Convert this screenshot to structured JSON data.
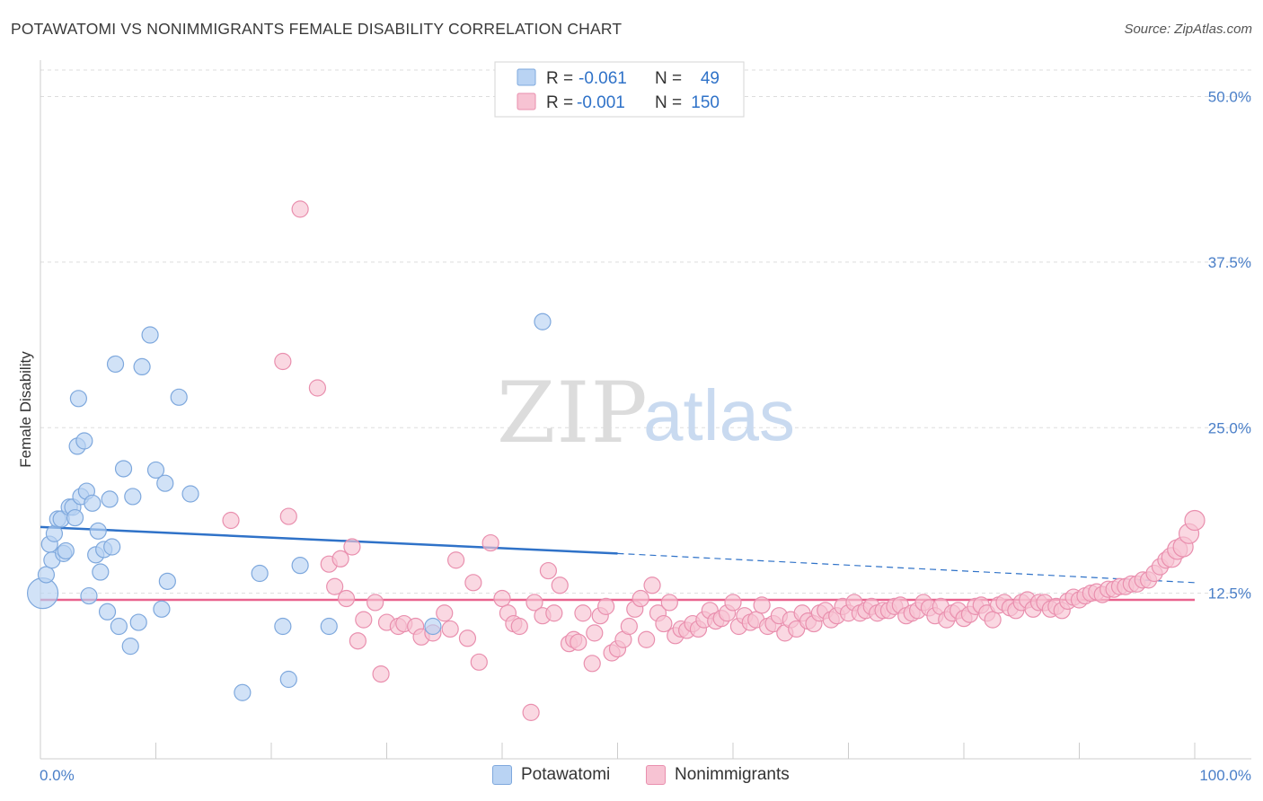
{
  "title": "POTAWATOMI VS NONIMMIGRANTS FEMALE DISABILITY CORRELATION CHART",
  "source": "Source: ZipAtlas.com",
  "watermark": {
    "zip": "ZIP",
    "atlas": "atlas"
  },
  "colors": {
    "blue_fill": "#b9d3f3",
    "blue_edge": "#7ea8dd",
    "blue_line": "#2f72c8",
    "pink_fill": "#f7c3d3",
    "pink_edge": "#e98fae",
    "pink_line": "#e9628e",
    "axis_label": "#4a7fc8",
    "grid": "#dddddd"
  },
  "legend": {
    "rows": [
      {
        "r_label": "R =",
        "r_value": "-0.061",
        "n_label": "N =",
        "n_value": "49"
      },
      {
        "r_label": "R =",
        "r_value": "-0.001",
        "n_label": "N =",
        "n_value": "150"
      }
    ]
  },
  "bottom_legend": [
    "Potawatomi",
    "Nonimmigrants"
  ],
  "chart_data": {
    "type": "scatter",
    "title": "POTAWATOMI VS NONIMMIGRANTS FEMALE DISABILITY CORRELATION CHART",
    "xlabel": "",
    "ylabel": "Female Disability",
    "xlim": [
      0,
      100
    ],
    "ylim": [
      0,
      52
    ],
    "x_tick_labels": [
      "0.0%",
      "100.0%"
    ],
    "y_ticks": [
      12.5,
      25.0,
      37.5,
      50.0
    ],
    "y_tick_labels": [
      "12.5%",
      "25.0%",
      "37.5%",
      "50.0%"
    ],
    "grid": true,
    "legend_position": "top-center",
    "series": [
      {
        "name": "Potawatomi",
        "r": -0.061,
        "n": 49,
        "trend": {
          "x": [
            0,
            50
          ],
          "y": [
            17.5,
            15.5
          ],
          "dashed_extension": {
            "x": [
              50,
              100
            ],
            "y": [
              15.5,
              13.3
            ]
          }
        },
        "points": [
          [
            0.2,
            12.5
          ],
          [
            0.5,
            13.9
          ],
          [
            0.8,
            16.2
          ],
          [
            1.0,
            15.0
          ],
          [
            1.2,
            17.0
          ],
          [
            1.5,
            18.1
          ],
          [
            1.8,
            18.1
          ],
          [
            2.0,
            15.5
          ],
          [
            2.2,
            15.7
          ],
          [
            2.5,
            19.0
          ],
          [
            2.8,
            19.0
          ],
          [
            3.0,
            18.2
          ],
          [
            3.2,
            23.6
          ],
          [
            3.3,
            27.2
          ],
          [
            3.5,
            19.8
          ],
          [
            3.8,
            24.0
          ],
          [
            4.0,
            20.2
          ],
          [
            4.2,
            12.3
          ],
          [
            4.5,
            19.3
          ],
          [
            4.8,
            15.4
          ],
          [
            5.0,
            17.2
          ],
          [
            5.2,
            14.1
          ],
          [
            5.5,
            15.8
          ],
          [
            5.8,
            11.1
          ],
          [
            6.0,
            19.6
          ],
          [
            6.2,
            16.0
          ],
          [
            6.5,
            29.8
          ],
          [
            6.8,
            10.0
          ],
          [
            7.2,
            21.9
          ],
          [
            7.8,
            8.5
          ],
          [
            8.0,
            19.8
          ],
          [
            8.5,
            10.3
          ],
          [
            8.8,
            29.6
          ],
          [
            9.5,
            32.0
          ],
          [
            10.0,
            21.8
          ],
          [
            10.5,
            11.3
          ],
          [
            10.8,
            20.8
          ],
          [
            11.0,
            13.4
          ],
          [
            12.0,
            27.3
          ],
          [
            13.0,
            20.0
          ],
          [
            17.5,
            5.0
          ],
          [
            19.0,
            14.0
          ],
          [
            21.0,
            10.0
          ],
          [
            21.5,
            6.0
          ],
          [
            22.5,
            14.6
          ],
          [
            25.0,
            10.0
          ],
          [
            34.0,
            10.0
          ],
          [
            43.5,
            33.0
          ]
        ]
      },
      {
        "name": "Nonimmigrants",
        "r": -0.001,
        "n": 150,
        "trend": {
          "x": [
            0,
            100
          ],
          "y": [
            12.0,
            12.0
          ]
        },
        "points": [
          [
            16.5,
            18.0
          ],
          [
            21.0,
            30.0
          ],
          [
            21.5,
            18.3
          ],
          [
            22.5,
            41.5
          ],
          [
            24.0,
            28.0
          ],
          [
            25.0,
            14.7
          ],
          [
            25.5,
            13.0
          ],
          [
            26.0,
            15.1
          ],
          [
            26.5,
            12.1
          ],
          [
            27.0,
            16.0
          ],
          [
            27.5,
            8.9
          ],
          [
            28.0,
            10.5
          ],
          [
            29.0,
            11.8
          ],
          [
            29.5,
            6.4
          ],
          [
            30.0,
            10.3
          ],
          [
            31.0,
            10.0
          ],
          [
            31.5,
            10.2
          ],
          [
            32.5,
            10.0
          ],
          [
            33.0,
            9.2
          ],
          [
            34.0,
            9.5
          ],
          [
            35.0,
            11.0
          ],
          [
            35.5,
            9.8
          ],
          [
            36.0,
            15.0
          ],
          [
            37.0,
            9.1
          ],
          [
            37.5,
            13.3
          ],
          [
            38.0,
            7.3
          ],
          [
            39.0,
            16.3
          ],
          [
            40.0,
            12.1
          ],
          [
            40.5,
            11.0
          ],
          [
            41.0,
            10.2
          ],
          [
            41.5,
            10.0
          ],
          [
            42.5,
            3.5
          ],
          [
            42.8,
            11.8
          ],
          [
            43.5,
            10.8
          ],
          [
            44.0,
            14.2
          ],
          [
            44.5,
            11.0
          ],
          [
            45.0,
            13.1
          ],
          [
            45.8,
            8.7
          ],
          [
            46.2,
            9.0
          ],
          [
            46.6,
            8.8
          ],
          [
            47.0,
            11.0
          ],
          [
            47.8,
            7.2
          ],
          [
            48.0,
            9.5
          ],
          [
            48.5,
            10.8
          ],
          [
            49.0,
            11.5
          ],
          [
            49.5,
            8.0
          ],
          [
            50.0,
            8.3
          ],
          [
            50.5,
            9.0
          ],
          [
            51.0,
            10.0
          ],
          [
            51.5,
            11.3
          ],
          [
            52.0,
            12.1
          ],
          [
            52.5,
            9.0
          ],
          [
            53.0,
            13.1
          ],
          [
            53.5,
            11.0
          ],
          [
            54.0,
            10.2
          ],
          [
            54.5,
            11.8
          ],
          [
            55.0,
            9.3
          ],
          [
            55.5,
            9.8
          ],
          [
            56.0,
            9.7
          ],
          [
            56.5,
            10.2
          ],
          [
            57.0,
            9.8
          ],
          [
            57.5,
            10.5
          ],
          [
            58.0,
            11.2
          ],
          [
            58.5,
            10.4
          ],
          [
            59.0,
            10.6
          ],
          [
            59.5,
            11.0
          ],
          [
            60.0,
            11.8
          ],
          [
            60.5,
            10.0
          ],
          [
            61.0,
            10.8
          ],
          [
            61.5,
            10.3
          ],
          [
            62.0,
            10.5
          ],
          [
            62.5,
            11.6
          ],
          [
            63.0,
            10.0
          ],
          [
            63.5,
            10.2
          ],
          [
            64.0,
            10.8
          ],
          [
            64.5,
            9.5
          ],
          [
            65.0,
            10.5
          ],
          [
            65.5,
            9.8
          ],
          [
            66.0,
            11.0
          ],
          [
            66.5,
            10.4
          ],
          [
            67.0,
            10.2
          ],
          [
            67.5,
            11.0
          ],
          [
            68.0,
            11.2
          ],
          [
            68.5,
            10.5
          ],
          [
            69.0,
            10.8
          ],
          [
            69.5,
            11.5
          ],
          [
            70.0,
            11.0
          ],
          [
            70.5,
            11.8
          ],
          [
            71.0,
            11.0
          ],
          [
            71.5,
            11.2
          ],
          [
            72.0,
            11.5
          ],
          [
            72.5,
            11.0
          ],
          [
            73.0,
            11.2
          ],
          [
            73.5,
            11.2
          ],
          [
            74.0,
            11.5
          ],
          [
            74.5,
            11.6
          ],
          [
            75.0,
            10.8
          ],
          [
            75.5,
            11.0
          ],
          [
            76.0,
            11.2
          ],
          [
            76.5,
            11.8
          ],
          [
            77.0,
            11.4
          ],
          [
            77.5,
            10.8
          ],
          [
            78.0,
            11.5
          ],
          [
            78.5,
            10.5
          ],
          [
            79.0,
            11.0
          ],
          [
            79.5,
            11.2
          ],
          [
            80.0,
            10.6
          ],
          [
            80.5,
            10.9
          ],
          [
            81.0,
            11.5
          ],
          [
            81.5,
            11.6
          ],
          [
            82.0,
            11.0
          ],
          [
            82.5,
            10.5
          ],
          [
            83.0,
            11.6
          ],
          [
            83.5,
            11.8
          ],
          [
            84.0,
            11.4
          ],
          [
            84.5,
            11.2
          ],
          [
            85.0,
            11.8
          ],
          [
            85.5,
            12.0
          ],
          [
            86.0,
            11.3
          ],
          [
            86.5,
            11.8
          ],
          [
            87.0,
            11.8
          ],
          [
            87.5,
            11.3
          ],
          [
            88.0,
            11.5
          ],
          [
            88.5,
            11.2
          ],
          [
            89.0,
            11.9
          ],
          [
            89.5,
            12.2
          ],
          [
            90.0,
            12.0
          ],
          [
            90.5,
            12.3
          ],
          [
            91.0,
            12.5
          ],
          [
            91.5,
            12.6
          ],
          [
            92.0,
            12.4
          ],
          [
            92.5,
            12.8
          ],
          [
            93.0,
            12.8
          ],
          [
            93.5,
            13.0
          ],
          [
            94.0,
            13.0
          ],
          [
            94.5,
            13.2
          ],
          [
            95.0,
            13.2
          ],
          [
            95.5,
            13.5
          ],
          [
            96.0,
            13.5
          ],
          [
            96.5,
            14.0
          ],
          [
            97.0,
            14.5
          ],
          [
            97.5,
            15.0
          ],
          [
            98.0,
            15.2
          ],
          [
            98.5,
            15.8
          ],
          [
            99.0,
            16.0
          ],
          [
            99.5,
            17.0
          ],
          [
            100.0,
            18.0
          ]
        ]
      }
    ]
  }
}
